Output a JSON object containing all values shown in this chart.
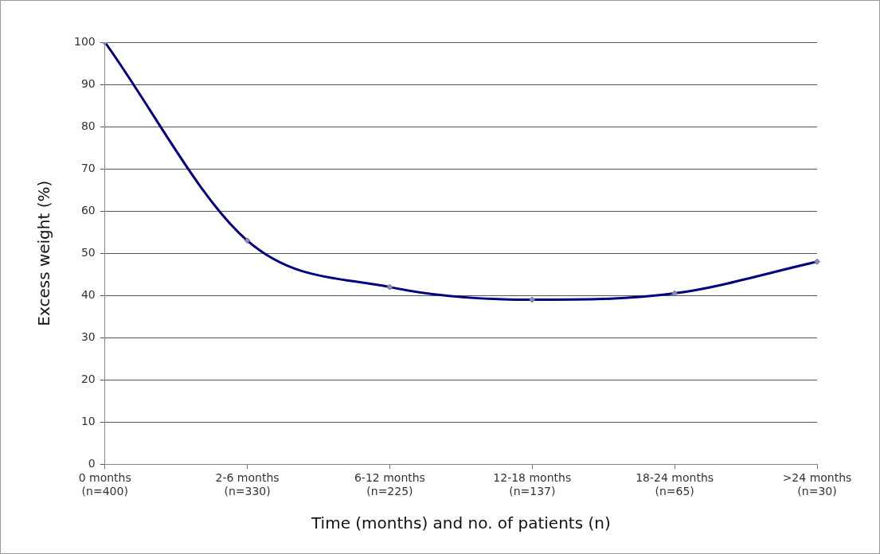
{
  "chart_data": {
    "type": "line",
    "xlabel": "Time (months) and no. of patients (n)",
    "ylabel": "Excess weight (%)",
    "categories": [
      "0 months\n(n=400)",
      "2-6 months\n(n=330)",
      "6-12 months\n(n=225)",
      "12-18 months\n(n=137)",
      "18-24 months\n(n=65)",
      ">24 months\n(n=30)"
    ],
    "series": [
      {
        "color": "#000080",
        "values": [
          100,
          53,
          42,
          39,
          40.5,
          48
        ]
      }
    ],
    "ylim": [
      0,
      100
    ],
    "yticks": [
      0,
      10,
      20,
      30,
      40,
      50,
      60,
      70,
      80,
      90,
      100
    ],
    "grid": "y",
    "legend": false,
    "marker": "diamond",
    "line_style": "solid"
  }
}
